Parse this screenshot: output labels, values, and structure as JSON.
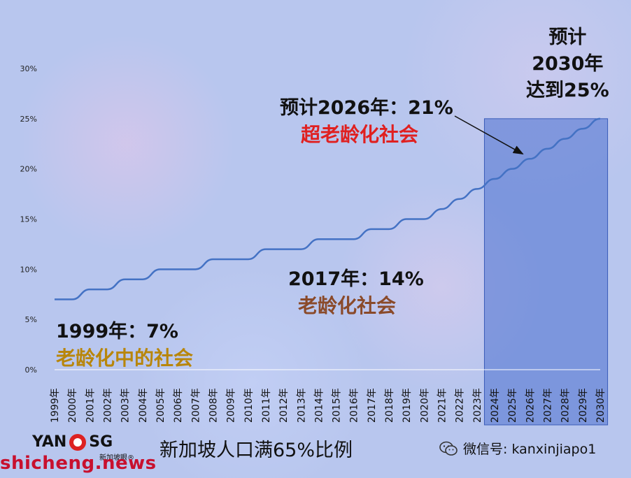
{
  "chart_data": {
    "type": "line",
    "x": [
      "1999年",
      "2000年",
      "2001年",
      "2002年",
      "2003年",
      "2004年",
      "2005年",
      "2006年",
      "2007年",
      "2008年",
      "2009年",
      "2010年",
      "2011年",
      "2012年",
      "2013年",
      "2014年",
      "2015年",
      "2016年",
      "2017年",
      "2018年",
      "2019年",
      "2020年",
      "2021年",
      "2022年",
      "2023年",
      "2024年",
      "2025年",
      "2026年",
      "2027年",
      "2028年",
      "2029年",
      "2030年"
    ],
    "series": [
      {
        "values": [
          7,
          7,
          8,
          8,
          9,
          9,
          10,
          10,
          10,
          11,
          11,
          11,
          12,
          12,
          12,
          13,
          13,
          13,
          14,
          14,
          15,
          15,
          16,
          17,
          18,
          19,
          20,
          21,
          22,
          23,
          24,
          25
        ]
      }
    ],
    "ylim": [
      0,
      30
    ],
    "yticks": [
      "0%",
      "5%",
      "10%",
      "15%",
      "20%",
      "25%",
      "30%"
    ],
    "line_color": "#4472c4",
    "highlight_region": {
      "from": "2024年",
      "to": "2030年",
      "color": "#4a6fcf"
    },
    "annotations": {
      "a1999_line1": "1999年：7%",
      "a1999_line2": "老龄化中的社会",
      "a2017_line1": "2017年：14%",
      "a2017_line2": "老龄化社会",
      "a2026_line1": "预计2026年：21%",
      "a2026_line2": "超老龄化社会",
      "a2030_line1": "预计",
      "a2030_line2": "2030年",
      "a2030_line3": "达到25%"
    }
  },
  "footer": {
    "title": "新加坡人口满65%比例",
    "logo_text_left": "YAN",
    "logo_text_right": "SG",
    "logo_sub": "新加坡眼®",
    "watermark": "shicheng.news",
    "wechat_label": "微信号: kanxinjiapo1"
  }
}
